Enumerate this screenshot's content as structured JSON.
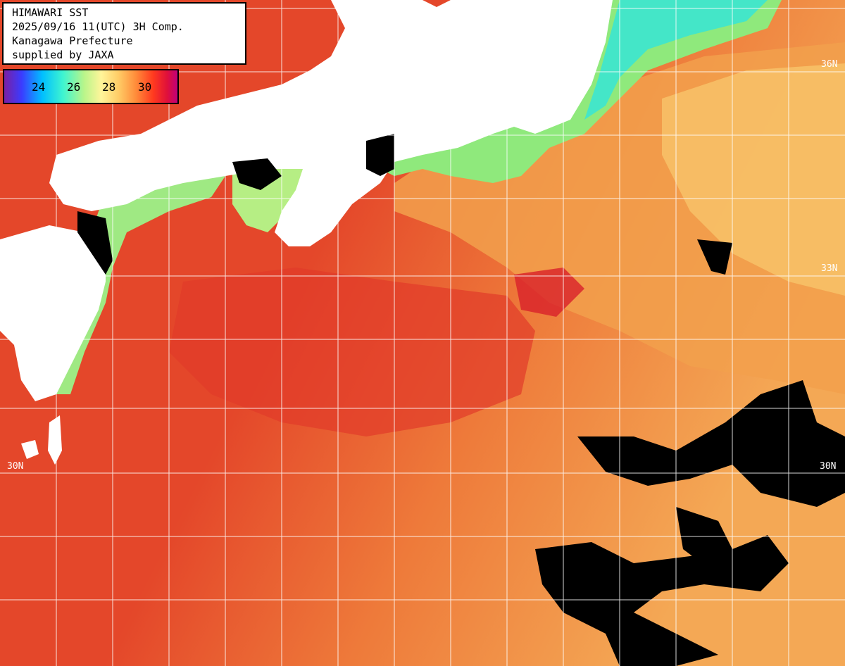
{
  "title": {
    "line1": "HIMAWARI SST",
    "line2": "2025/09/16 11(UTC) 3H Comp.",
    "line3": "Kanagawa Prefecture",
    "line4": "supplied by JAXA"
  },
  "legend": {
    "ticks": [
      "24",
      "26",
      "28",
      "30"
    ],
    "colors": [
      "#7a1fa2",
      "#3b3bff",
      "#00bfff",
      "#3ff5d0",
      "#b8f58a",
      "#fff59a",
      "#ffcc66",
      "#ff8c3a",
      "#ff3a1f",
      "#e0103a",
      "#c0007a"
    ]
  },
  "latitude_labels": {
    "lat36_right": "36N",
    "lat33_right": "33N",
    "lat30_left": "30N",
    "lat30_right": "30N"
  },
  "colors": {
    "land": "#ffffff",
    "cloud": "#000000",
    "warm_sea": "#e8562a",
    "hot_sea": "#e0402a",
    "cool_sea": "#f3a04a",
    "coastal_cold": "#8df07a",
    "grid": "#ffffff"
  }
}
